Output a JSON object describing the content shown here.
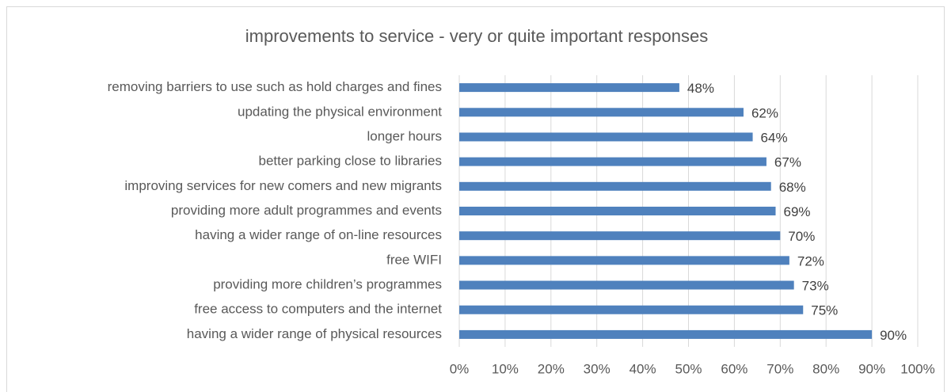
{
  "chart_data": {
    "type": "bar",
    "orientation": "horizontal",
    "title": "improvements to service - very or quite important responses",
    "categories": [
      "removing barriers to use such as hold charges and fines",
      "updating the physical environment",
      "longer hours",
      "better parking close to libraries",
      "improving services for new comers and new migrants",
      "providing more adult programmes and events",
      "having a wider range of on-line resources",
      "free WIFI",
      "providing more children’s programmes",
      "free access to computers and the internet",
      "having a wider range of physical resources"
    ],
    "values": [
      48,
      62,
      64,
      67,
      68,
      69,
      70,
      72,
      73,
      75,
      90
    ],
    "value_labels": [
      "48%",
      "62%",
      "64%",
      "67%",
      "68%",
      "69%",
      "70%",
      "72%",
      "73%",
      "75%",
      "90%"
    ],
    "color": "#4f81bd",
    "xlim": [
      0,
      100
    ],
    "xticks": [
      {
        "value": 0,
        "label": "0%"
      },
      {
        "value": 10,
        "label": "10%"
      },
      {
        "value": 20,
        "label": "20%"
      },
      {
        "value": 30,
        "label": "30%"
      },
      {
        "value": 40,
        "label": "40%"
      },
      {
        "value": 50,
        "label": "50%"
      },
      {
        "value": 60,
        "label": "60%"
      },
      {
        "value": 70,
        "label": "70%"
      },
      {
        "value": 80,
        "label": "80%"
      },
      {
        "value": 90,
        "label": "90%"
      },
      {
        "value": 100,
        "label": "100%"
      }
    ],
    "grid": true
  }
}
